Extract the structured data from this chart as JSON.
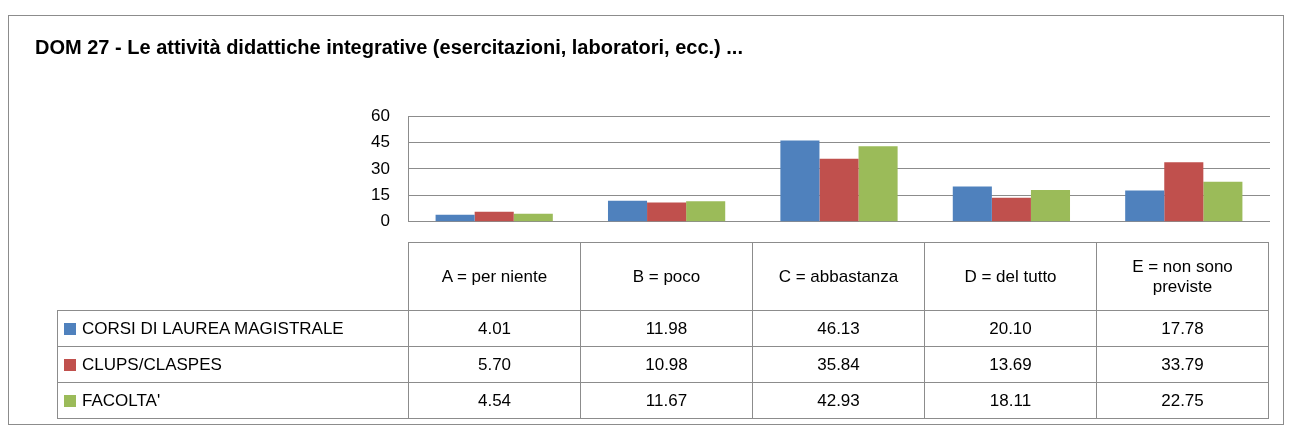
{
  "chart_data": {
    "type": "bar",
    "title": "DOM  27 - Le attività didattiche integrative (esercitazioni, laboratori,  ecc.) ...",
    "categories": [
      "A = per niente",
      "B = poco",
      "C = abbastanza",
      "D = del tutto",
      "E = non sono previste"
    ],
    "series": [
      {
        "name": "CORSI DI LAUREA MAGISTRALE",
        "color": "#4f81bd",
        "values": [
          4.01,
          11.98,
          46.13,
          20.1,
          17.78
        ],
        "value_labels": [
          "4.01",
          "11.98",
          "46.13",
          "20.10",
          "17.78"
        ]
      },
      {
        "name": "CLUPS/CLASPES",
        "color": "#c0504d",
        "values": [
          5.7,
          10.98,
          35.84,
          13.69,
          33.79
        ],
        "value_labels": [
          "5.70",
          "10.98",
          "35.84",
          "13.69",
          "33.79"
        ]
      },
      {
        "name": "FACOLTA'",
        "color": "#9bbb59",
        "values": [
          4.54,
          11.67,
          42.93,
          18.11,
          22.75
        ],
        "value_labels": [
          "4.54",
          "11.67",
          "42.93",
          "18.11",
          "22.75"
        ]
      }
    ],
    "ylim": [
      0,
      60
    ],
    "yticks": [
      0,
      15,
      30,
      45,
      60
    ],
    "grid": "y",
    "legend": "bottom left"
  }
}
